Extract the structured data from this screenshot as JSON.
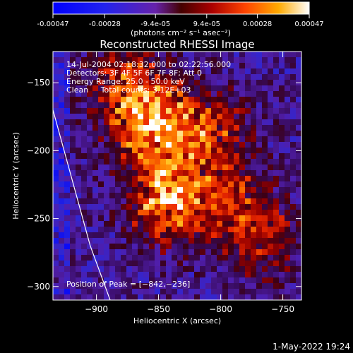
{
  "colorbar": {
    "tick_labels": [
      "-0.00047",
      "-0.00028",
      "-9.4e-05",
      "9.4e-05",
      "0.00028",
      "0.00047"
    ],
    "tick_values": [
      -0.00047,
      -0.00028,
      -9.4e-05,
      9.4e-05,
      0.00028,
      0.00047
    ],
    "range": [
      -0.00047,
      0.00047
    ],
    "unit_label": "(photons cm⁻² s⁻¹ asec⁻²)"
  },
  "chart_data": {
    "type": "heatmap",
    "title": "Reconstructed RHESSI Image",
    "xlabel": "Heliocentric X (arcsec)",
    "ylabel": "Heliocentric Y (arcsec)",
    "xlim": [
      -935,
      -735
    ],
    "ylim": [
      -310,
      -127
    ],
    "x_ticks": [
      -900,
      -850,
      -800,
      -750
    ],
    "x_tick_labels": [
      "−900",
      "−850",
      "−800",
      "−750"
    ],
    "y_ticks": [
      -150,
      -200,
      -250,
      -300
    ],
    "y_tick_labels": [
      "−150",
      "−200",
      "−250",
      "−300"
    ],
    "grid": false,
    "info_lines": [
      "14-Jul-2004 02:18:32.000 to 02:22:56.000",
      "Detectors: 3F 4F 5F 6F 7F 8F; Att 0",
      "Energy Range: 25.0 - 50.0 keV",
      "Clean     Total counts: 3.12E+03"
    ],
    "peak_label": "Position of Peak = [−842,−236]",
    "peak": [
      -842,
      -236
    ],
    "limb_curve": [
      [
        -935,
        -170
      ],
      [
        -920,
        -220
      ],
      [
        -905,
        -270
      ],
      [
        -889,
        -310
      ]
    ],
    "sources": [
      {
        "x": -858,
        "y": -178,
        "intensity": 0.00045
      },
      {
        "x": -843,
        "y": -236,
        "intensity": 0.00047
      },
      {
        "x": -810,
        "y": -188,
        "intensity": 0.00032
      },
      {
        "x": -785,
        "y": -245,
        "intensity": 0.00026
      },
      {
        "x": -878,
        "y": -145,
        "intensity": 0.00024
      },
      {
        "x": -763,
        "y": -270,
        "intensity": 0.00018
      }
    ]
  },
  "timestamp": "1-May-2022 19:24"
}
